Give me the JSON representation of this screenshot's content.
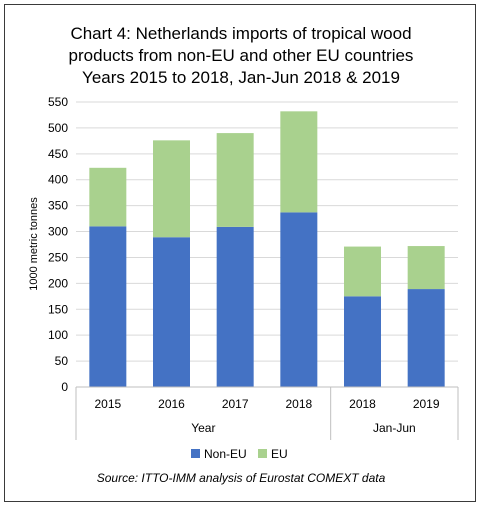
{
  "chart_data": {
    "type": "bar",
    "stacked": true,
    "title_lines": [
      "Chart 4: Netherlands imports of tropical wood",
      "products from non-EU and other EU countries",
      "Years 2015 to 2018, Jan-Jun 2018 & 2019"
    ],
    "ylabel": "1000 metric tonnes",
    "ylim": [
      0,
      550
    ],
    "yticks": [
      0,
      50,
      100,
      150,
      200,
      250,
      300,
      350,
      400,
      450,
      500,
      550
    ],
    "categories": [
      "2015",
      "2016",
      "2017",
      "2018",
      "2018",
      "2019"
    ],
    "groups": [
      {
        "label": "Year",
        "categories": [
          "2015",
          "2016",
          "2017",
          "2018"
        ]
      },
      {
        "label": "Jan-Jun",
        "categories": [
          "2018",
          "2019"
        ]
      }
    ],
    "series": [
      {
        "name": "Non-EU",
        "color": "#4472C4",
        "values": [
          310,
          289,
          309,
          337,
          175,
          189
        ]
      },
      {
        "name": "EU",
        "color": "#A9D18E",
        "values": [
          113,
          187,
          181,
          195,
          96,
          83
        ]
      }
    ],
    "legend_position": "bottom",
    "grid": true,
    "source": "Source: ITTO-IMM analysis of Eurostat COMEXT data"
  }
}
